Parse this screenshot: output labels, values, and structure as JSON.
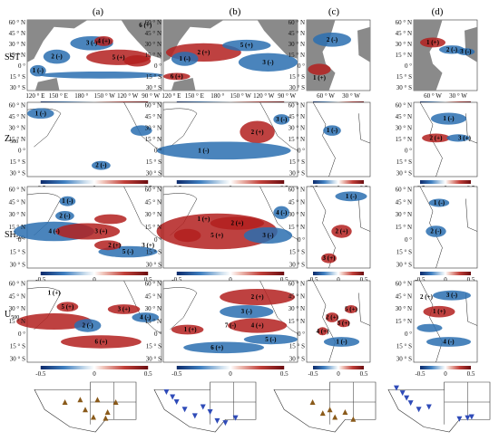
{
  "columns": [
    "(a)",
    "(b)",
    "(c)",
    "(d)"
  ],
  "rows": [
    {
      "main": "SST",
      "sub": ""
    },
    {
      "main": "Z",
      "sub": "500"
    },
    {
      "main": "SH",
      "sub": "500"
    },
    {
      "main": "U",
      "sub": "500"
    }
  ],
  "pacific_lat_ticks": [
    "60 ° N",
    "45 ° N",
    "30 ° N",
    "15 ° N",
    "0 °",
    "15 ° S",
    "30 ° S"
  ],
  "atlantic_lat_ticks": [
    "60 ° N",
    "45 ° N",
    "30 ° N",
    "15 ° N",
    "0 °",
    "15 ° S",
    "30 ° S"
  ],
  "pacific_lon_ticks": [
    "120 ° E",
    "150 ° E",
    "180 °",
    "150 ° W",
    "120 ° W",
    "90 ° W"
  ],
  "atlantic_lon_ticks": [
    "60 ° W",
    "30 ° W"
  ],
  "colorbar_ticks": [
    "-0.5",
    "0",
    "0.5"
  ],
  "colors": {
    "negative": "#2a6fb0",
    "positive": "#b3201f",
    "land": "#8a8a8a",
    "tan": "#9b7d55",
    "triangle_up": "#8a5a1a",
    "triangle_down": "#2f4bb8"
  },
  "panels": {
    "a1": [
      {
        "t": "1 (-)",
        "s": "n"
      },
      {
        "t": "2 (-)",
        "s": "n"
      },
      {
        "t": "3 (-)",
        "s": "n"
      },
      {
        "t": "4 (+)",
        "s": "p"
      },
      {
        "t": "5 (+)",
        "s": "p"
      },
      {
        "t": "6 (+)",
        "s": "p"
      }
    ],
    "b1": [
      {
        "t": "1 (-)",
        "s": "n"
      },
      {
        "t": "2 (+)",
        "s": "p"
      },
      {
        "t": "3 (-)",
        "s": "n"
      },
      {
        "t": "5 (+)",
        "s": "p"
      },
      {
        "t": "6 (+)",
        "s": "p"
      }
    ],
    "c1": [
      {
        "t": "1 (+)",
        "s": "p"
      },
      {
        "t": "2 (-)",
        "s": "n"
      }
    ],
    "d1": [
      {
        "t": "1 (+)",
        "s": "p"
      },
      {
        "t": "2 (-)",
        "s": "n"
      },
      {
        "t": "3 (-)",
        "s": "n"
      }
    ],
    "a2": [
      {
        "t": "1 (-)",
        "s": "n"
      },
      {
        "t": "2 (-)",
        "s": "n"
      }
    ],
    "b2": [
      {
        "t": "1 (-)",
        "s": "n"
      },
      {
        "t": "2 (+)",
        "s": "p"
      },
      {
        "t": "3 (-)",
        "s": "n"
      }
    ],
    "c2": [
      {
        "t": "1 (-)",
        "s": "n"
      }
    ],
    "d2": [
      {
        "t": "1 (-)",
        "s": "n"
      },
      {
        "t": "2 (+)",
        "s": "p"
      },
      {
        "t": "3 (+)",
        "s": "p"
      }
    ],
    "a3": [
      {
        "t": "1 (-)",
        "s": "n"
      },
      {
        "t": "2 (-)",
        "s": "n"
      },
      {
        "t": "3 (+)",
        "s": "p"
      },
      {
        "t": "4 (-)",
        "s": "n"
      },
      {
        "t": "5 (-)",
        "s": "n"
      },
      {
        "t": "2 (+)",
        "s": "p"
      },
      {
        "t": "3 (+)",
        "s": "p"
      }
    ],
    "b3": [
      {
        "t": "1 (+)",
        "s": "p"
      },
      {
        "t": "2 (+)",
        "s": "p"
      },
      {
        "t": "3 (-)",
        "s": "n"
      },
      {
        "t": "4 (-)",
        "s": "n"
      },
      {
        "t": "5 (+)",
        "s": "p"
      }
    ],
    "c3": [
      {
        "t": "1 (-)",
        "s": "n"
      },
      {
        "t": "2 (+)",
        "s": "p"
      },
      {
        "t": "3 (+)",
        "s": "p"
      }
    ],
    "d3": [
      {
        "t": "1 (-)",
        "s": "n"
      },
      {
        "t": "2 (-)",
        "s": "n"
      }
    ],
    "a4": [
      {
        "t": "1 (+)",
        "s": "p"
      },
      {
        "t": "2 (-)",
        "s": "n"
      },
      {
        "t": "3 (+)",
        "s": "p"
      },
      {
        "t": "4 (-)",
        "s": "n"
      },
      {
        "t": "5 (+)",
        "s": "p"
      },
      {
        "t": "6 (+)",
        "s": "p"
      }
    ],
    "b4": [
      {
        "t": "1 (+)",
        "s": "p"
      },
      {
        "t": "2 (+)",
        "s": "p"
      },
      {
        "t": "3 (-)",
        "s": "n"
      },
      {
        "t": "4 (+)",
        "s": "p"
      },
      {
        "t": "5 (-)",
        "s": "n"
      },
      {
        "t": "6 (+)",
        "s": "p"
      },
      {
        "t": "7 (-)",
        "s": "n"
      }
    ],
    "c4": [
      {
        "t": "1 (-)",
        "s": "n"
      },
      {
        "t": "2 (+)",
        "s": "p"
      },
      {
        "t": "3 (+)",
        "s": "p"
      },
      {
        "t": "4 (+)",
        "s": "p"
      },
      {
        "t": "5 (+)",
        "s": "p"
      }
    ],
    "d4": [
      {
        "t": "1 (+)",
        "s": "p"
      },
      {
        "t": "2 (+)",
        "s": "p"
      },
      {
        "t": "3 (-)",
        "s": "n"
      },
      {
        "t": "4 (-)",
        "s": "n"
      }
    ]
  },
  "chart_data": [
    {
      "type": "heatmap",
      "panel": "(a) SST",
      "colorbar": [
        -0.5,
        0,
        0.5
      ],
      "xlabels": [
        "120 ° E",
        "150 ° E",
        "180 °",
        "150 ° W",
        "120 ° W",
        "90 ° W"
      ],
      "ylabels": [
        "60 ° N",
        "45 ° N",
        "30 ° N",
        "15 ° N",
        "0 °",
        "15 ° S",
        "30 ° S"
      ]
    },
    {
      "type": "heatmap",
      "panel": "(b) SST",
      "colorbar": [
        -0.5,
        0,
        0.5
      ]
    },
    {
      "type": "heatmap",
      "panel": "(c) SST",
      "colorbar": [
        -0.5,
        0,
        0.5
      ],
      "xlabels": [
        "60 ° W",
        "30 ° W"
      ]
    },
    {
      "type": "heatmap",
      "panel": "(d) SST",
      "colorbar": [
        -0.5,
        0,
        0.5
      ],
      "xlabels": [
        "60 ° W",
        "30 ° W"
      ]
    },
    {
      "type": "heatmap",
      "panel": "(a) Z500",
      "colorbar": [
        -0.5,
        0,
        0.5
      ]
    },
    {
      "type": "heatmap",
      "panel": "(b) Z500",
      "colorbar": [
        -0.5,
        0,
        0.5
      ]
    },
    {
      "type": "heatmap",
      "panel": "(c) Z500",
      "colorbar": [
        -0.5,
        0,
        0.5
      ]
    },
    {
      "type": "heatmap",
      "panel": "(d) Z500",
      "colorbar": [
        -0.5,
        0,
        0.5
      ]
    },
    {
      "type": "heatmap",
      "panel": "(a) SH500",
      "colorbar": [
        -0.5,
        0,
        0.5
      ]
    },
    {
      "type": "heatmap",
      "panel": "(b) SH500",
      "colorbar": [
        -0.5,
        0,
        0.5
      ]
    },
    {
      "type": "heatmap",
      "panel": "(c) SH500",
      "colorbar": [
        -0.5,
        0,
        0.5
      ]
    },
    {
      "type": "heatmap",
      "panel": "(d) SH500",
      "colorbar": [
        -0.5,
        0,
        0.5
      ]
    },
    {
      "type": "heatmap",
      "panel": "(a) U500",
      "colorbar": [
        -0.5,
        0,
        0.5
      ]
    },
    {
      "type": "heatmap",
      "panel": "(b) U500",
      "colorbar": [
        -0.5,
        0,
        0.5
      ]
    },
    {
      "type": "heatmap",
      "panel": "(c) U500",
      "colorbar": [
        -0.5,
        0,
        0.5
      ]
    },
    {
      "type": "heatmap",
      "panel": "(d) U500",
      "colorbar": [
        -0.5,
        0,
        0.5
      ]
    }
  ]
}
